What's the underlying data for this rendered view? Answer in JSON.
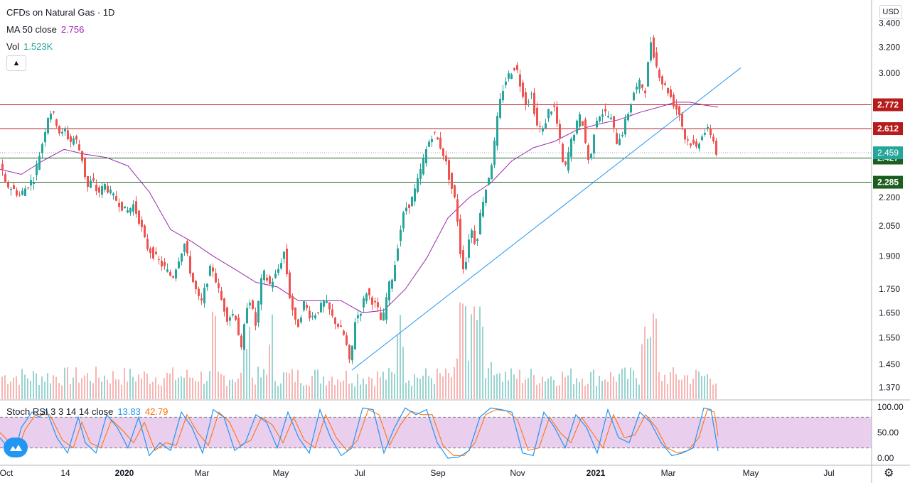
{
  "header": {
    "symbol": "CFDs on Natural Gas · 1D",
    "ma_label": "MA 50 close",
    "ma_value": "2.756",
    "vol_label": "Vol",
    "vol_value": "1.523K",
    "stoch_label": "Stoch RSI 3 3 14 14 close",
    "stoch_k": "13.83",
    "stoch_d": "42.79",
    "currency_button": "USD",
    "collapse_icon": "chevron-up-icon"
  },
  "colors": {
    "up": "#26a69a",
    "down": "#ef5350",
    "ma": "#9c27b0",
    "trend": "#2196f3",
    "resistance": "#b71c1c",
    "support": "#1b5e20",
    "stoch_k": "#2196f3",
    "stoch_d": "#ff6d00",
    "stoch_band": "#e1bee7",
    "price_tag_current": "#26a69a"
  },
  "chart_data": {
    "type": "candlestick",
    "x_axis": {
      "ticks": [
        "Oct",
        "14",
        "2020",
        "Mar",
        "May",
        "Jul",
        "Sep",
        "Nov",
        "2021",
        "Mar",
        "May",
        "Jul"
      ]
    },
    "y_axis": {
      "ticks": [
        "3.400",
        "3.200",
        "3.000",
        "2.200",
        "2.050",
        "1.900",
        "1.750",
        "1.650",
        "1.550",
        "1.450",
        "1.370"
      ],
      "scale": "log",
      "ylim": [
        1.33,
        3.6
      ]
    },
    "price_path": [
      [
        0,
        2.43
      ],
      [
        10,
        2.27
      ],
      [
        20,
        2.25
      ],
      [
        30,
        2.21
      ],
      [
        40,
        2.26
      ],
      [
        50,
        2.31
      ],
      [
        62,
        2.52
      ],
      [
        72,
        2.74
      ],
      [
        80,
        2.68
      ],
      [
        88,
        2.56
      ],
      [
        95,
        2.61
      ],
      [
        100,
        2.52
      ],
      [
        108,
        2.56
      ],
      [
        118,
        2.42
      ],
      [
        125,
        2.25
      ],
      [
        132,
        2.3
      ],
      [
        140,
        2.22
      ],
      [
        150,
        2.27
      ],
      [
        160,
        2.21
      ],
      [
        170,
        2.17
      ],
      [
        180,
        2.12
      ],
      [
        190,
        2.16
      ],
      [
        200,
        2.06
      ],
      [
        208,
        1.95
      ],
      [
        220,
        1.9
      ],
      [
        235,
        1.84
      ],
      [
        245,
        1.8
      ],
      [
        255,
        1.9
      ],
      [
        262,
        1.96
      ],
      [
        272,
        1.8
      ],
      [
        285,
        1.68
      ],
      [
        293,
        1.78
      ],
      [
        300,
        1.86
      ],
      [
        312,
        1.72
      ],
      [
        322,
        1.63
      ],
      [
        333,
        1.65
      ],
      [
        342,
        1.5
      ],
      [
        352,
        1.73
      ],
      [
        362,
        1.6
      ],
      [
        372,
        1.83
      ],
      [
        382,
        1.77
      ],
      [
        392,
        1.82
      ],
      [
        402,
        1.92
      ],
      [
        410,
        1.72
      ],
      [
        420,
        1.58
      ],
      [
        430,
        1.69
      ],
      [
        440,
        1.63
      ],
      [
        450,
        1.66
      ],
      [
        460,
        1.7
      ],
      [
        470,
        1.63
      ],
      [
        480,
        1.59
      ],
      [
        488,
        1.55
      ],
      [
        495,
        1.44
      ],
      [
        502,
        1.62
      ],
      [
        510,
        1.66
      ],
      [
        518,
        1.74
      ],
      [
        526,
        1.7
      ],
      [
        533,
        1.67
      ],
      [
        540,
        1.6
      ],
      [
        548,
        1.75
      ],
      [
        556,
        1.82
      ],
      [
        564,
        2.0
      ],
      [
        572,
        2.14
      ],
      [
        580,
        2.17
      ],
      [
        588,
        2.26
      ],
      [
        596,
        2.38
      ],
      [
        604,
        2.51
      ],
      [
        612,
        2.59
      ],
      [
        620,
        2.52
      ],
      [
        628,
        2.43
      ],
      [
        636,
        2.28
      ],
      [
        644,
        2.16
      ],
      [
        650,
        1.92
      ],
      [
        656,
        1.82
      ],
      [
        664,
        2.05
      ],
      [
        672,
        1.95
      ],
      [
        680,
        2.16
      ],
      [
        688,
        2.28
      ],
      [
        696,
        2.44
      ],
      [
        704,
        2.75
      ],
      [
        712,
        2.93
      ],
      [
        720,
        3.0
      ],
      [
        728,
        3.06
      ],
      [
        734,
        2.92
      ],
      [
        742,
        2.79
      ],
      [
        750,
        2.84
      ],
      [
        758,
        2.63
      ],
      [
        766,
        2.6
      ],
      [
        774,
        2.73
      ],
      [
        782,
        2.75
      ],
      [
        790,
        2.53
      ],
      [
        796,
        2.33
      ],
      [
        804,
        2.5
      ],
      [
        812,
        2.62
      ],
      [
        820,
        2.71
      ],
      [
        826,
        2.52
      ],
      [
        832,
        2.37
      ],
      [
        840,
        2.67
      ],
      [
        848,
        2.72
      ],
      [
        856,
        2.71
      ],
      [
        862,
        2.67
      ],
      [
        870,
        2.53
      ],
      [
        878,
        2.59
      ],
      [
        886,
        2.72
      ],
      [
        894,
        2.86
      ],
      [
        902,
        2.92
      ],
      [
        910,
        2.88
      ],
      [
        918,
        3.25
      ],
      [
        926,
        3.05
      ],
      [
        934,
        2.93
      ],
      [
        942,
        2.87
      ],
      [
        950,
        2.78
      ],
      [
        958,
        2.71
      ],
      [
        966,
        2.55
      ],
      [
        974,
        2.52
      ],
      [
        982,
        2.49
      ],
      [
        990,
        2.58
      ],
      [
        998,
        2.6
      ],
      [
        1004,
        2.57
      ],
      [
        1010,
        2.459
      ]
    ],
    "ma50_path": [
      [
        0,
        2.36
      ],
      [
        30,
        2.33
      ],
      [
        60,
        2.41
      ],
      [
        90,
        2.48
      ],
      [
        120,
        2.45
      ],
      [
        150,
        2.43
      ],
      [
        180,
        2.38
      ],
      [
        210,
        2.23
      ],
      [
        240,
        2.03
      ],
      [
        270,
        1.97
      ],
      [
        300,
        1.9
      ],
      [
        330,
        1.84
      ],
      [
        360,
        1.78
      ],
      [
        390,
        1.76
      ],
      [
        420,
        1.7
      ],
      [
        450,
        1.7
      ],
      [
        480,
        1.7
      ],
      [
        510,
        1.65
      ],
      [
        540,
        1.66
      ],
      [
        570,
        1.75
      ],
      [
        600,
        1.89
      ],
      [
        630,
        2.09
      ],
      [
        660,
        2.2
      ],
      [
        690,
        2.28
      ],
      [
        720,
        2.41
      ],
      [
        750,
        2.49
      ],
      [
        780,
        2.53
      ],
      [
        810,
        2.6
      ],
      [
        840,
        2.64
      ],
      [
        870,
        2.67
      ],
      [
        900,
        2.72
      ],
      [
        930,
        2.76
      ],
      [
        950,
        2.79
      ],
      [
        970,
        2.79
      ],
      [
        990,
        2.77
      ],
      [
        1010,
        2.756
      ]
    ],
    "horizontal_levels": [
      {
        "value": "2.772",
        "color": "resistance"
      },
      {
        "value": "2.612",
        "color": "resistance"
      },
      {
        "value": "2.427",
        "color": "support"
      },
      {
        "value": "2.285",
        "color": "support"
      }
    ],
    "current_price": "2.459",
    "trend_line": {
      "from": [
        495,
        1.43
      ],
      "to": [
        1042,
        3.04
      ]
    },
    "volume": {
      "current": "1.523K",
      "spikes": [
        300,
        345,
        380,
        563,
        650,
        665,
        675,
        905,
        918
      ]
    },
    "stoch_rsi": {
      "ticks": [
        "100.00",
        "50.00",
        "0.00"
      ],
      "upper_band": 80,
      "lower_band": 20,
      "k_last": 13.83,
      "d_last": 42.79,
      "k_path": [
        [
          0,
          40
        ],
        [
          20,
          5
        ],
        [
          30,
          60
        ],
        [
          45,
          90
        ],
        [
          55,
          80
        ],
        [
          65,
          95
        ],
        [
          80,
          40
        ],
        [
          95,
          10
        ],
        [
          110,
          80
        ],
        [
          120,
          30
        ],
        [
          135,
          10
        ],
        [
          150,
          85
        ],
        [
          165,
          60
        ],
        [
          180,
          20
        ],
        [
          195,
          80
        ],
        [
          210,
          5
        ],
        [
          225,
          30
        ],
        [
          240,
          15
        ],
        [
          255,
          90
        ],
        [
          270,
          60
        ],
        [
          285,
          10
        ],
        [
          300,
          95
        ],
        [
          315,
          80
        ],
        [
          330,
          15
        ],
        [
          345,
          30
        ],
        [
          360,
          85
        ],
        [
          375,
          70
        ],
        [
          390,
          20
        ],
        [
          405,
          90
        ],
        [
          420,
          40
        ],
        [
          435,
          10
        ],
        [
          450,
          95
        ],
        [
          465,
          40
        ],
        [
          480,
          5
        ],
        [
          495,
          20
        ],
        [
          510,
          98
        ],
        [
          525,
          95
        ],
        [
          540,
          10
        ],
        [
          555,
          60
        ],
        [
          570,
          98
        ],
        [
          585,
          85
        ],
        [
          600,
          95
        ],
        [
          615,
          30
        ],
        [
          630,
          0
        ],
        [
          645,
          2
        ],
        [
          660,
          15
        ],
        [
          675,
          80
        ],
        [
          690,
          98
        ],
        [
          705,
          95
        ],
        [
          720,
          90
        ],
        [
          735,
          10
        ],
        [
          750,
          5
        ],
        [
          765,
          90
        ],
        [
          780,
          60
        ],
        [
          795,
          20
        ],
        [
          810,
          85
        ],
        [
          825,
          60
        ],
        [
          840,
          10
        ],
        [
          855,
          95
        ],
        [
          870,
          40
        ],
        [
          885,
          30
        ],
        [
          900,
          90
        ],
        [
          915,
          70
        ],
        [
          930,
          30
        ],
        [
          945,
          5
        ],
        [
          960,
          10
        ],
        [
          975,
          20
        ],
        [
          990,
          98
        ],
        [
          1000,
          95
        ],
        [
          1010,
          13.83
        ]
      ],
      "d_path": [
        [
          0,
          50
        ],
        [
          25,
          15
        ],
        [
          35,
          55
        ],
        [
          50,
          85
        ],
        [
          60,
          85
        ],
        [
          70,
          85
        ],
        [
          88,
          35
        ],
        [
          103,
          20
        ],
        [
          115,
          70
        ],
        [
          127,
          30
        ],
        [
          142,
          20
        ],
        [
          157,
          75
        ],
        [
          172,
          55
        ],
        [
          188,
          30
        ],
        [
          203,
          70
        ],
        [
          218,
          15
        ],
        [
          233,
          30
        ],
        [
          248,
          25
        ],
        [
          263,
          85
        ],
        [
          278,
          50
        ],
        [
          293,
          25
        ],
        [
          308,
          90
        ],
        [
          323,
          70
        ],
        [
          338,
          25
        ],
        [
          353,
          35
        ],
        [
          368,
          80
        ],
        [
          383,
          65
        ],
        [
          398,
          30
        ],
        [
          413,
          80
        ],
        [
          428,
          35
        ],
        [
          443,
          20
        ],
        [
          458,
          85
        ],
        [
          473,
          40
        ],
        [
          488,
          15
        ],
        [
          503,
          35
        ],
        [
          518,
          95
        ],
        [
          533,
          85
        ],
        [
          548,
          25
        ],
        [
          563,
          65
        ],
        [
          578,
          92
        ],
        [
          593,
          85
        ],
        [
          608,
          85
        ],
        [
          623,
          25
        ],
        [
          638,
          5
        ],
        [
          653,
          5
        ],
        [
          668,
          30
        ],
        [
          683,
          85
        ],
        [
          698,
          95
        ],
        [
          713,
          92
        ],
        [
          728,
          75
        ],
        [
          743,
          15
        ],
        [
          758,
          20
        ],
        [
          773,
          80
        ],
        [
          788,
          50
        ],
        [
          803,
          30
        ],
        [
          818,
          80
        ],
        [
          833,
          50
        ],
        [
          848,
          20
        ],
        [
          863,
          85
        ],
        [
          878,
          40
        ],
        [
          893,
          45
        ],
        [
          908,
          85
        ],
        [
          923,
          60
        ],
        [
          938,
          20
        ],
        [
          953,
          10
        ],
        [
          968,
          15
        ],
        [
          983,
          40
        ],
        [
          995,
          95
        ],
        [
          1005,
          90
        ],
        [
          1010,
          42.79
        ]
      ]
    }
  }
}
